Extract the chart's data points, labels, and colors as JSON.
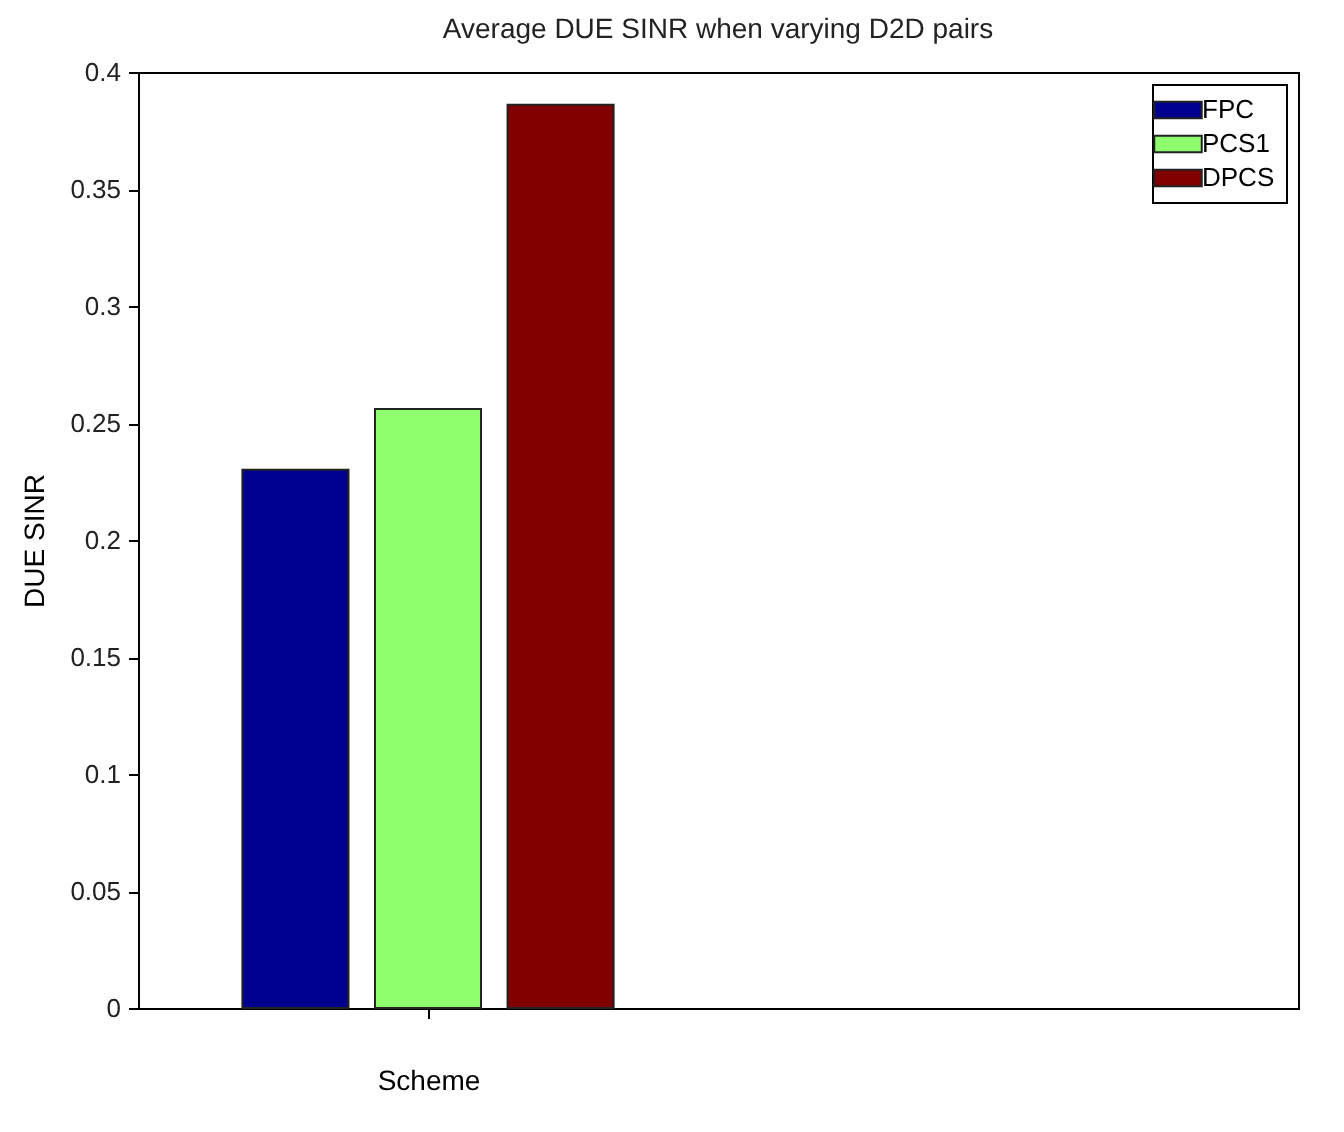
{
  "chart_data": {
    "type": "bar",
    "title": "Average DUE SINR when varying D2D pairs",
    "xlabel": "Scheme",
    "ylabel": "DUE SINR",
    "categories": [
      null
    ],
    "series": [
      {
        "name": "FPC",
        "color": "#00008f",
        "values": [
          0.23
        ]
      },
      {
        "name": "PCS1",
        "color": "#8fff70",
        "values": [
          0.256
        ]
      },
      {
        "name": "DPCS",
        "color": "#800000",
        "values": [
          0.386
        ]
      }
    ],
    "ylim": [
      0,
      0.4
    ],
    "yticks": [
      0,
      0.05,
      0.1,
      0.15,
      0.2,
      0.25,
      0.3,
      0.35,
      0.4
    ],
    "grid": false,
    "legend": "top right",
    "tick_labels": "y"
  }
}
